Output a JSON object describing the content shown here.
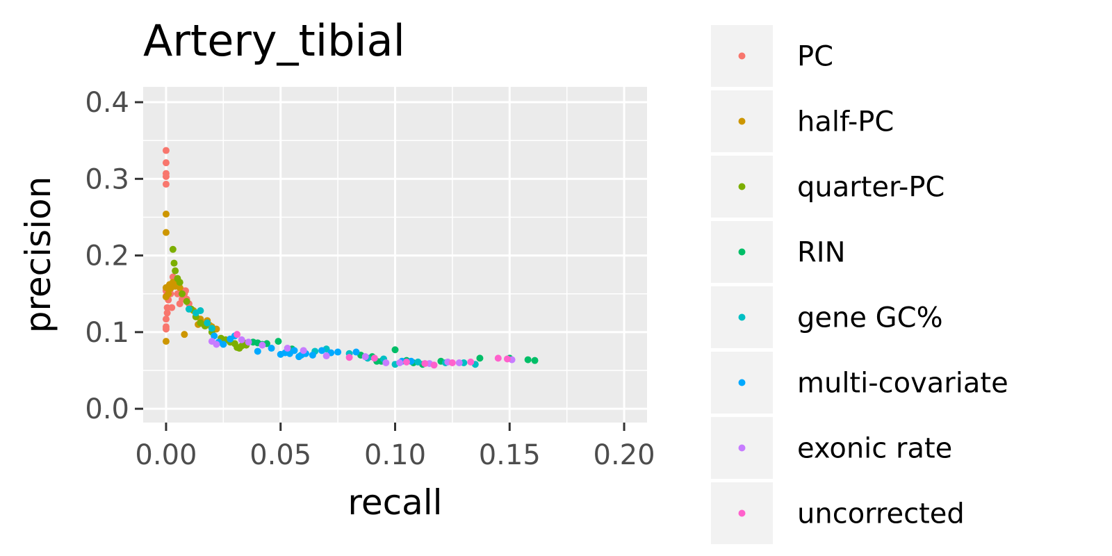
{
  "chart_data": {
    "type": "scatter",
    "title": "Artery_tibial",
    "xlabel": "recall",
    "ylabel": "precision",
    "xlim": [
      -0.01,
      0.21
    ],
    "ylim": [
      -0.018,
      0.42
    ],
    "x_ticks": [
      0.0,
      0.05,
      0.1,
      0.15,
      0.2
    ],
    "x_tick_labels": [
      "0.00",
      "0.05",
      "0.10",
      "0.15",
      "0.20"
    ],
    "y_ticks": [
      0.0,
      0.1,
      0.2,
      0.3,
      0.4
    ],
    "y_tick_labels": [
      "0.0",
      "0.1",
      "0.2",
      "0.3",
      "0.4"
    ],
    "grid": true,
    "legend_position": "right",
    "series": [
      {
        "name": "PC",
        "color": "#F8766D",
        "points": [
          [
            0.0,
            0.337
          ],
          [
            0.0,
            0.321
          ],
          [
            0.0,
            0.307
          ],
          [
            0.0,
            0.303
          ],
          [
            0.0,
            0.293
          ],
          [
            0.0,
            0.154
          ],
          [
            0.0,
            0.147
          ],
          [
            0.0005,
            0.132
          ],
          [
            0.0005,
            0.125
          ],
          [
            0.0,
            0.117
          ],
          [
            0.0,
            0.107
          ],
          [
            0.0,
            0.104
          ],
          [
            0.001,
            0.142
          ],
          [
            0.002,
            0.15
          ],
          [
            0.0025,
            0.132
          ],
          [
            0.003,
            0.172
          ],
          [
            0.004,
            0.16
          ],
          [
            0.005,
            0.15
          ],
          [
            0.006,
            0.137
          ],
          [
            0.007,
            0.143
          ],
          [
            0.008,
            0.15
          ],
          [
            0.009,
            0.143
          ],
          [
            0.01,
            0.137
          ],
          [
            0.0085,
            0.154
          ],
          [
            0.0075,
            0.154
          ]
        ]
      },
      {
        "name": "half-PC",
        "color": "#CD9600",
        "points": [
          [
            0.0,
            0.254
          ],
          [
            0.0,
            0.23
          ],
          [
            0.0,
            0.158
          ],
          [
            0.0,
            0.146
          ],
          [
            0.0,
            0.088
          ],
          [
            0.001,
            0.15
          ],
          [
            0.0015,
            0.162
          ],
          [
            0.002,
            0.157
          ],
          [
            0.003,
            0.165
          ],
          [
            0.004,
            0.16
          ],
          [
            0.005,
            0.167
          ],
          [
            0.006,
            0.158
          ],
          [
            0.008,
            0.097
          ],
          [
            0.012,
            0.128
          ],
          [
            0.014,
            0.11
          ],
          [
            0.015,
            0.117
          ],
          [
            0.016,
            0.111
          ],
          [
            0.017,
            0.11
          ],
          [
            0.018,
            0.115
          ],
          [
            0.019,
            0.109
          ],
          [
            0.02,
            0.107
          ],
          [
            0.022,
            0.104
          ]
        ]
      },
      {
        "name": "quarter-PC",
        "color": "#7CAE00",
        "points": [
          [
            0.003,
            0.208
          ],
          [
            0.0035,
            0.19
          ],
          [
            0.004,
            0.18
          ],
          [
            0.005,
            0.17
          ],
          [
            0.006,
            0.165
          ],
          [
            0.007,
            0.15
          ],
          [
            0.009,
            0.14
          ],
          [
            0.011,
            0.13
          ],
          [
            0.013,
            0.12
          ],
          [
            0.015,
            0.112
          ],
          [
            0.017,
            0.108
          ],
          [
            0.02,
            0.1
          ],
          [
            0.024,
            0.092
          ],
          [
            0.026,
            0.09
          ],
          [
            0.028,
            0.087
          ],
          [
            0.03,
            0.085
          ],
          [
            0.031,
            0.08
          ],
          [
            0.032,
            0.079
          ],
          [
            0.033,
            0.082
          ],
          [
            0.034,
            0.086
          ],
          [
            0.035,
            0.083
          ]
        ]
      },
      {
        "name": "RIN",
        "color": "#00BE67",
        "points": [
          [
            0.038,
            0.087
          ],
          [
            0.04,
            0.086
          ],
          [
            0.042,
            0.084
          ],
          [
            0.044,
            0.085
          ],
          [
            0.049,
            0.088
          ],
          [
            0.055,
            0.078
          ],
          [
            0.06,
            0.072
          ],
          [
            0.085,
            0.07
          ],
          [
            0.09,
            0.068
          ],
          [
            0.092,
            0.062
          ],
          [
            0.094,
            0.062
          ],
          [
            0.1,
            0.077
          ],
          [
            0.105,
            0.063
          ],
          [
            0.108,
            0.06
          ],
          [
            0.112,
            0.058
          ],
          [
            0.12,
            0.062
          ],
          [
            0.137,
            0.066
          ],
          [
            0.15,
            0.066
          ],
          [
            0.158,
            0.064
          ],
          [
            0.161,
            0.063
          ]
        ]
      },
      {
        "name": "gene GC%",
        "color": "#00BFC4",
        "points": [
          [
            0.01,
            0.13
          ],
          [
            0.013,
            0.125
          ],
          [
            0.015,
            0.128
          ],
          [
            0.018,
            0.112
          ],
          [
            0.02,
            0.105
          ],
          [
            0.065,
            0.075
          ],
          [
            0.07,
            0.078
          ],
          [
            0.08,
            0.072
          ],
          [
            0.088,
            0.066
          ],
          [
            0.095,
            0.065
          ],
          [
            0.1,
            0.058
          ],
          [
            0.11,
            0.061
          ],
          [
            0.122,
            0.06
          ],
          [
            0.13,
            0.06
          ],
          [
            0.135,
            0.058
          ]
        ]
      },
      {
        "name": "multi-covariate",
        "color": "#00A9FF",
        "points": [
          [
            0.021,
            0.095
          ],
          [
            0.023,
            0.087
          ],
          [
            0.025,
            0.084
          ],
          [
            0.028,
            0.091
          ],
          [
            0.03,
            0.095
          ],
          [
            0.04,
            0.075
          ],
          [
            0.046,
            0.079
          ],
          [
            0.05,
            0.071
          ],
          [
            0.052,
            0.073
          ],
          [
            0.054,
            0.072
          ],
          [
            0.056,
            0.076
          ],
          [
            0.058,
            0.068
          ],
          [
            0.059,
            0.07
          ],
          [
            0.061,
            0.072
          ],
          [
            0.064,
            0.07
          ],
          [
            0.068,
            0.076
          ],
          [
            0.072,
            0.073
          ],
          [
            0.075,
            0.074
          ],
          [
            0.083,
            0.074
          ],
          [
            0.103,
            0.062
          ],
          [
            0.107,
            0.062
          ]
        ]
      },
      {
        "name": "exonic rate",
        "color": "#C77CFF",
        "points": [
          [
            0.02,
            0.088
          ],
          [
            0.022,
            0.084
          ],
          [
            0.033,
            0.09
          ],
          [
            0.036,
            0.087
          ],
          [
            0.042,
            0.083
          ],
          [
            0.053,
            0.079
          ],
          [
            0.06,
            0.076
          ],
          [
            0.07,
            0.069
          ],
          [
            0.087,
            0.068
          ],
          [
            0.096,
            0.06
          ],
          [
            0.102,
            0.06
          ],
          [
            0.115,
            0.059
          ],
          [
            0.123,
            0.061
          ],
          [
            0.128,
            0.06
          ],
          [
            0.151,
            0.064
          ]
        ]
      },
      {
        "name": "uncorrected",
        "color": "#FF61CC",
        "points": [
          [
            0.031,
            0.097
          ],
          [
            0.08,
            0.067
          ],
          [
            0.091,
            0.066
          ],
          [
            0.105,
            0.061
          ],
          [
            0.113,
            0.059
          ],
          [
            0.117,
            0.057
          ],
          [
            0.125,
            0.06
          ],
          [
            0.133,
            0.061
          ],
          [
            0.145,
            0.066
          ],
          [
            0.149,
            0.065
          ]
        ]
      }
    ]
  }
}
